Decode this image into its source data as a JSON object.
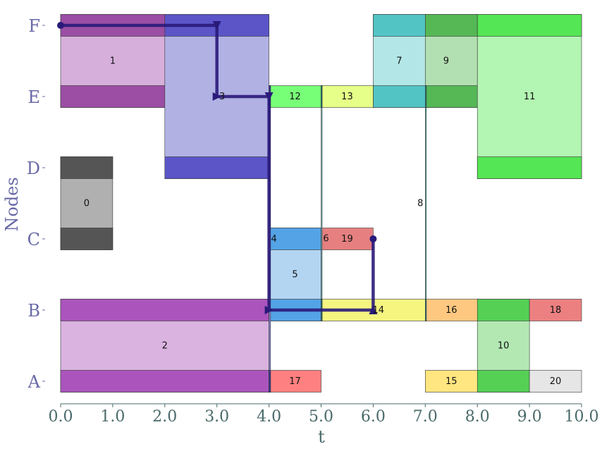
{
  "chart_data": {
    "type": "gantt",
    "xlabel": "t",
    "ylabel": "Nodes",
    "xlim": [
      0,
      10
    ],
    "x_ticks": [
      "0.0",
      "1.0",
      "2.0",
      "3.0",
      "4.0",
      "5.0",
      "6.0",
      "7.0",
      "8.0",
      "9.0",
      "10.0"
    ],
    "y_categories": [
      "A",
      "B",
      "C",
      "D",
      "E",
      "F"
    ],
    "tasks": [
      {
        "id": "0",
        "t0": 0,
        "t1": 1,
        "y0": 2,
        "y1": 3,
        "color": "#555555",
        "fill": "#b0b0b0"
      },
      {
        "id": "1",
        "t0": 0,
        "t1": 2,
        "y0": 4,
        "y1": 5,
        "color": "#9b4ea4",
        "fill": "#d6b0db"
      },
      {
        "id": "2",
        "t0": 0,
        "t1": 4,
        "y0": 0,
        "y1": 1,
        "color": "#ab55bc",
        "fill": "#dab3e0"
      },
      {
        "id": "3",
        "t0": 2,
        "t1": 4,
        "y0": 3,
        "y1": 5,
        "color": "#5b55c8",
        "fill": "#b1b1e4"
      },
      {
        "id": "4",
        "t0": 4,
        "t1": 4.03,
        "y0": 0,
        "y1": 4,
        "color": "#3a3aa0",
        "fill": "#8a8ad0"
      },
      {
        "id": "5",
        "t0": 4,
        "t1": 5,
        "y0": 1,
        "y1": 2,
        "color": "#54a3e6",
        "fill": "#b3d5f2"
      },
      {
        "id": "6",
        "t0": 5,
        "t1": 5.02,
        "y0": 1,
        "y1": 4,
        "color": "#2a8a8a",
        "fill": "#7ac0c0"
      },
      {
        "id": "7",
        "t0": 6,
        "t1": 7,
        "y0": 4,
        "y1": 5,
        "color": "#53c4c4",
        "fill": "#b3e6e6"
      },
      {
        "id": "8",
        "t0": 7,
        "t1": 7.02,
        "y0": 1,
        "y1": 4,
        "color": "#2a8a8a",
        "fill": "#7ac0c0"
      },
      {
        "id": "9",
        "t0": 7,
        "t1": 8,
        "y0": 4,
        "y1": 5,
        "color": "#55b855",
        "fill": "#b3e0b3"
      },
      {
        "id": "10",
        "t0": 8,
        "t1": 9,
        "y0": 0,
        "y1": 1,
        "color": "#55d055",
        "fill": "#b3e8b3"
      },
      {
        "id": "11",
        "t0": 8,
        "t1": 10,
        "y0": 3,
        "y1": 5,
        "color": "#55e655",
        "fill": "#b3f5b3"
      },
      {
        "id": "12",
        "t0": 4,
        "t1": 5,
        "y0": 4,
        "y1": 4,
        "color": "#77ff77",
        "fill": "#77ff77"
      },
      {
        "id": "13",
        "t0": 5,
        "t1": 6,
        "y0": 4,
        "y1": 4,
        "color": "#e6ff88",
        "fill": "#e6ff88"
      },
      {
        "id": "14",
        "t0": 5,
        "t1": 7,
        "y0": 1,
        "y1": 1,
        "color": "#f5f580",
        "fill": "#f5f580"
      },
      {
        "id": "15",
        "t0": 7,
        "t1": 8,
        "y0": 0,
        "y1": 0,
        "color": "#ffe680",
        "fill": "#ffe680"
      },
      {
        "id": "16",
        "t0": 7,
        "t1": 8,
        "y0": 1,
        "y1": 1,
        "color": "#ffc880",
        "fill": "#ffc880"
      },
      {
        "id": "17",
        "t0": 4,
        "t1": 5,
        "y0": 0,
        "y1": 0,
        "color": "#ff8080",
        "fill": "#ff8080"
      },
      {
        "id": "18",
        "t0": 9,
        "t1": 10,
        "y0": 1,
        "y1": 1,
        "color": "#ec8080",
        "fill": "#ec8080"
      },
      {
        "id": "19",
        "t0": 5,
        "t1": 6,
        "y0": 2,
        "y1": 2,
        "color": "#e68080",
        "fill": "#e68080"
      },
      {
        "id": "20",
        "t0": 9,
        "t1": 10,
        "y0": 0,
        "y1": 0,
        "color": "#e6e6e6",
        "fill": "#e6e6e6"
      }
    ],
    "path": {
      "color": "#2a1a7a",
      "points": [
        [
          0,
          5
        ],
        [
          3,
          5
        ],
        [
          3,
          4
        ],
        [
          4,
          4
        ],
        [
          4,
          1
        ],
        [
          6,
          1
        ],
        [
          6,
          2
        ]
      ]
    }
  }
}
